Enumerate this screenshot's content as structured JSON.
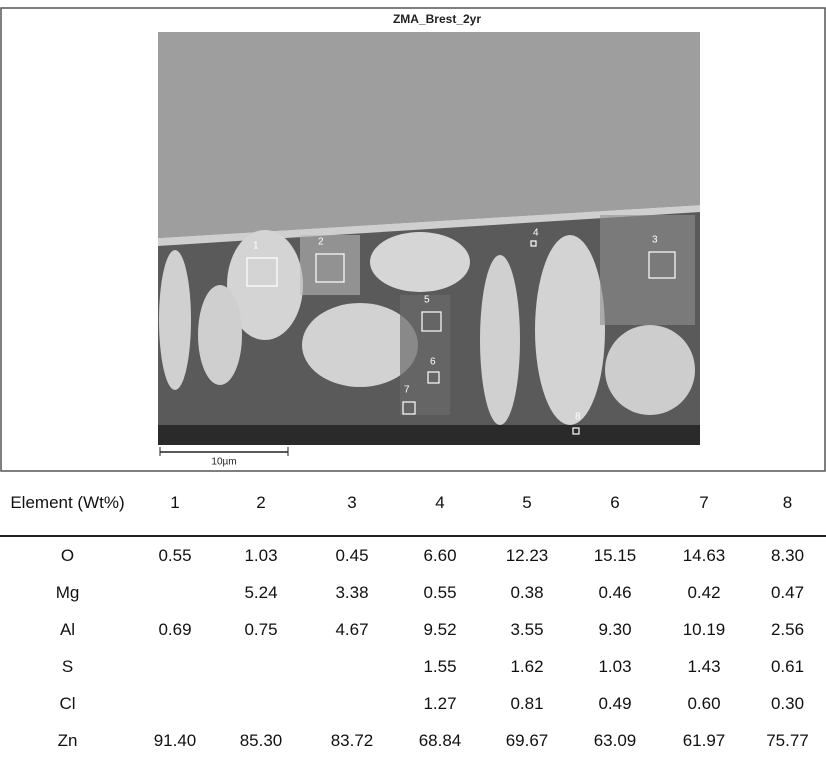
{
  "figure": {
    "title": "ZMA_Brest_2yr",
    "scale_bar": "10µm",
    "markers": [
      "1",
      "2",
      "3",
      "4",
      "5",
      "6",
      "7",
      "8"
    ]
  },
  "table": {
    "header": [
      "Element (Wt%)",
      "1",
      "2",
      "3",
      "4",
      "5",
      "6",
      "7",
      "8"
    ],
    "rows": [
      [
        "O",
        "0.55",
        "1.03",
        "0.45",
        "6.60",
        "12.23",
        "15.15",
        "14.63",
        "8.30"
      ],
      [
        "Mg",
        null,
        "5.24",
        "3.38",
        "0.55",
        "0.38",
        "0.46",
        "0.42",
        "0.47"
      ],
      [
        "Al",
        "0.69",
        "0.75",
        "4.67",
        "9.52",
        "3.55",
        "9.30",
        "10.19",
        "2.56"
      ],
      [
        "S",
        null,
        null,
        null,
        "1.55",
        "1.62",
        "1.03",
        "1.43",
        "0.61"
      ],
      [
        "Cl",
        null,
        null,
        null,
        "1.27",
        "0.81",
        "0.49",
        "0.60",
        "0.30"
      ],
      [
        "Zn",
        "91.40",
        "85.30",
        "83.72",
        "68.84",
        "69.67",
        "63.09",
        "61.97",
        "75.77"
      ]
    ]
  }
}
